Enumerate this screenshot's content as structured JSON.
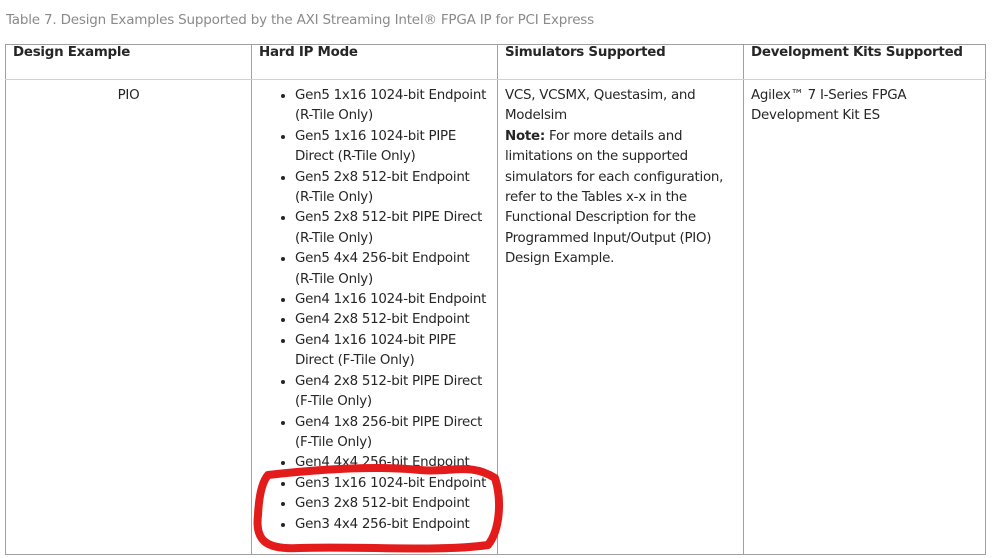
{
  "caption": "Table 7.  Design Examples Supported by the AXI Streaming Intel® FPGA IP for PCI Express",
  "headers": [
    "Design Example",
    "Hard IP Mode",
    "Simulators Supported",
    "Development Kits Supported"
  ],
  "row": {
    "design_example": "PIO",
    "hard_ip_modes": [
      "Gen5 1x16 1024-bit Endpoint (R-Tile Only)",
      "Gen5 1x16 1024-bit PIPE Direct (R-Tile Only)",
      "Gen5 2x8 512-bit Endpoint (R-Tile Only)",
      "Gen5 2x8 512-bit PIPE Direct (R-Tile Only)",
      "Gen5 4x4 256-bit Endpoint (R-Tile Only)",
      "Gen4 1x16 1024-bit Endpoint",
      "Gen4 2x8 512-bit Endpoint",
      "Gen4 1x16 1024-bit PIPE Direct (F-Tile Only)",
      "Gen4 2x8 512-bit PIPE Direct (F-Tile Only)",
      "Gen4 1x8 256-bit PIPE Direct (F-Tile Only)",
      "Gen4 4x4 256-bit Endpoint",
      "Gen3 1x16 1024-bit Endpoint",
      "Gen3 2x8 512-bit Endpoint",
      "Gen3 4x4 256-bit Endpoint"
    ],
    "simulators": "VCS, VCSMX, Questasim, and Modelsim",
    "note_label": "Note:",
    "note_text": " For more details and limitations on the supported simulators for each configuration, refer to the Tables x-x in the Functional Description for the Programmed Input/Output (PIO) Design Example.",
    "dev_kits": "Agilex™ 7 I-Series FPGA Development Kit ES"
  },
  "annotation_color": "#e31b1b"
}
